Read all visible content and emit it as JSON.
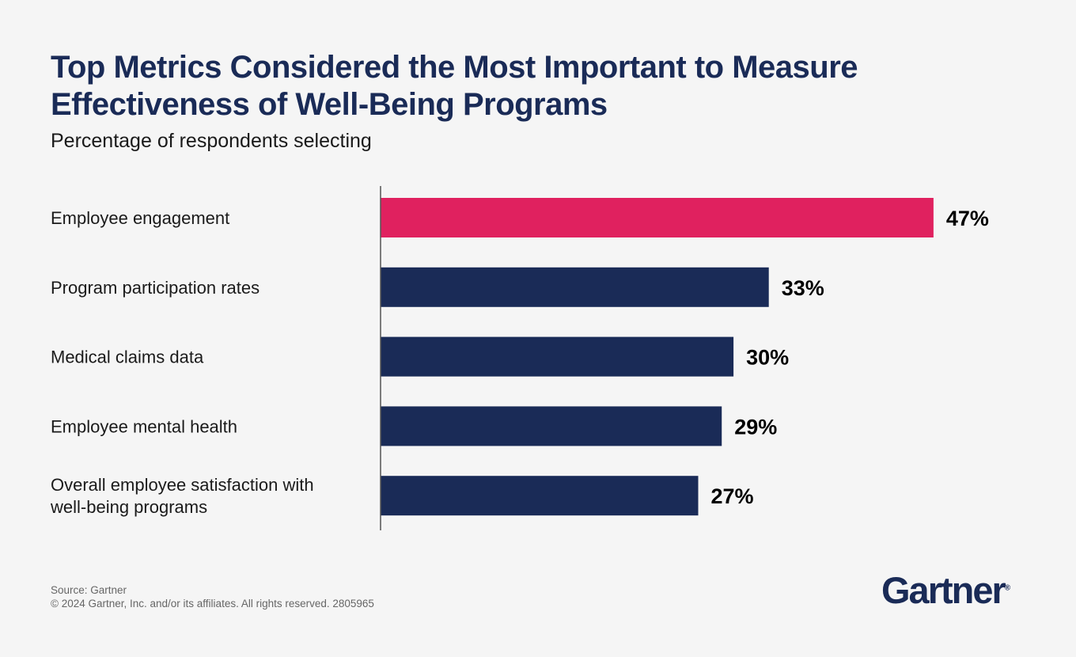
{
  "chart_data": {
    "type": "bar",
    "orientation": "horizontal",
    "title": "Top Metrics Considered the Most Important to Measure Effectiveness of Well-Being Programs",
    "subtitle": "Percentage of respondents selecting",
    "categories": [
      [
        "Employee engagement"
      ],
      [
        "Program participation rates"
      ],
      [
        "Medical claims data"
      ],
      [
        "Employee mental health"
      ],
      [
        "Overall employee satisfaction with",
        "well-being programs"
      ]
    ],
    "values": [
      47,
      33,
      30,
      29,
      27
    ],
    "value_labels": [
      "47%",
      "33%",
      "30%",
      "29%",
      "27%"
    ],
    "unit": "%",
    "xlim": [
      0,
      50
    ],
    "grid": false,
    "colors": {
      "highlight": "#e0215f",
      "default": "#1a2b57"
    },
    "highlight_index": 0
  },
  "footer": {
    "source": "Source: Gartner",
    "copyright": "© 2024 Gartner, Inc. and/or its affiliates. All rights reserved. 2805965"
  },
  "logo": {
    "text": "Gartner",
    "mark": "®"
  }
}
